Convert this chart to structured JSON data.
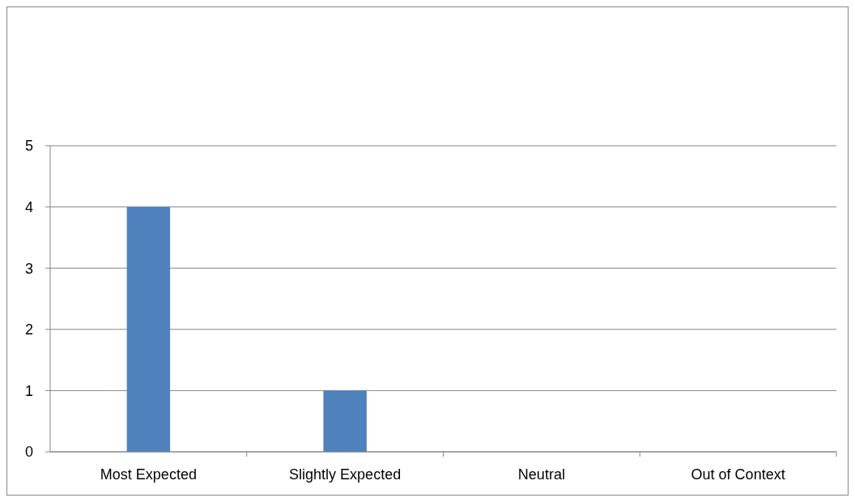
{
  "chart_data": {
    "type": "bar",
    "categories": [
      "Most Expected",
      "Slightly Expected",
      "Neutral",
      "Out of Context"
    ],
    "values": [
      4,
      1,
      0,
      0
    ],
    "color": "#4f81bd",
    "ylim": [
      0,
      5
    ],
    "yticks": [
      0,
      1,
      2,
      3,
      4,
      5
    ],
    "grid": "y"
  }
}
